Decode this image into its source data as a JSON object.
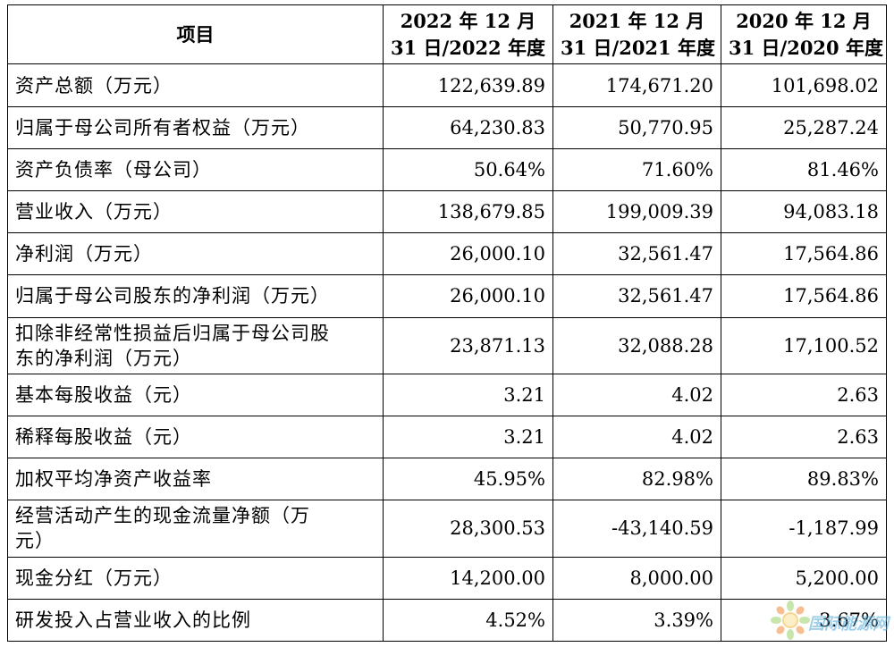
{
  "header": {
    "item": "项目",
    "col2022": [
      "2022 年 12 月",
      "31 日/2022 年度"
    ],
    "col2021": [
      "2021 年 12 月",
      "31 日/2021 年度"
    ],
    "col2020": [
      "2020 年 12 月",
      "31 日/2020 年度"
    ]
  },
  "rows": [
    {
      "label": [
        "资产总额（万元）"
      ],
      "v2022": "122,639.89",
      "v2021": "174,671.20",
      "v2020": "101,698.02"
    },
    {
      "label": [
        "归属于母公司所有者权益（万元）"
      ],
      "v2022": "64,230.83",
      "v2021": "50,770.95",
      "v2020": "25,287.24"
    },
    {
      "label": [
        "资产负债率（母公司）"
      ],
      "v2022": "50.64%",
      "v2021": "71.60%",
      "v2020": "81.46%"
    },
    {
      "label": [
        "营业收入（万元）"
      ],
      "v2022": "138,679.85",
      "v2021": "199,009.39",
      "v2020": "94,083.18"
    },
    {
      "label": [
        "净利润（万元）"
      ],
      "v2022": "26,000.10",
      "v2021": "32,561.47",
      "v2020": "17,564.86"
    },
    {
      "label": [
        "归属于母公司股东的净利润（万元）"
      ],
      "v2022": "26,000.10",
      "v2021": "32,561.47",
      "v2020": "17,564.86"
    },
    {
      "label": [
        "扣除非经常性损益后归属于母公司股",
        "东的净利润（万元）"
      ],
      "v2022": "23,871.13",
      "v2021": "32,088.28",
      "v2020": "17,100.52"
    },
    {
      "label": [
        "基本每股收益（元）"
      ],
      "v2022": "3.21",
      "v2021": "4.02",
      "v2020": "2.63"
    },
    {
      "label": [
        "稀释每股收益（元）"
      ],
      "v2022": "3.21",
      "v2021": "4.02",
      "v2020": "2.63"
    },
    {
      "label": [
        "加权平均净资产收益率"
      ],
      "v2022": "45.95%",
      "v2021": "82.98%",
      "v2020": "89.83%"
    },
    {
      "label": [
        "经营活动产生的现金流量净额（万",
        "元）"
      ],
      "v2022": "28,300.53",
      "v2021": "-43,140.59",
      "v2020": "-1,187.99"
    },
    {
      "label": [
        "现金分红（万元）"
      ],
      "v2022": "14,200.00",
      "v2021": "8,000.00",
      "v2020": "5,200.00"
    },
    {
      "label": [
        "研发投入占营业收入的比例"
      ],
      "v2022": "4.52%",
      "v2021": "3.39%",
      "v2020": "3.67%"
    }
  ],
  "watermark": {
    "text": "国际能源网",
    "icon": "sun-flower-logo-icon",
    "color": "#4fa8d8"
  }
}
